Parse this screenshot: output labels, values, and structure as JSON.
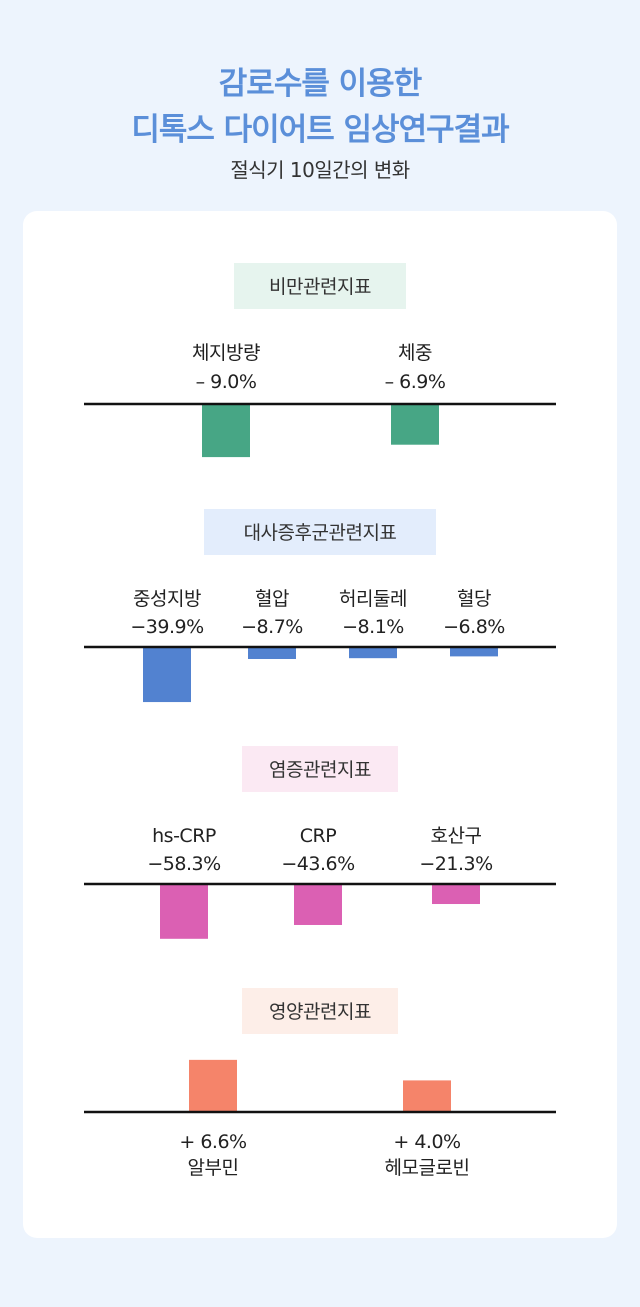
{
  "header": {
    "title_line1": "감로수를 이용한",
    "title_line2": "디톡스 다이어트 임상연구결과",
    "subtitle": "절식기 10일간의 변화"
  },
  "colors": {
    "background": "#edf4fd",
    "title": "#5b8fd9"
  },
  "chart_data": [
    {
      "type": "bar",
      "section_label": "비만관련지표",
      "label_bg": "#e6f4ee",
      "bar_color": "#47a685",
      "categories": [
        "체지방량",
        "체중"
      ],
      "value_labels": [
        "– 9.0%",
        "– 6.9%"
      ],
      "values": [
        -9.0,
        -6.9
      ]
    },
    {
      "type": "bar",
      "section_label": "대사증후군관련지표",
      "label_bg": "#e3edfc",
      "bar_color": "#5282d0",
      "categories": [
        "중성지방",
        "혈압",
        "허리둘레",
        "혈당"
      ],
      "value_labels": [
        "−39.9%",
        "−8.7%",
        "−8.1%",
        "−6.8%"
      ],
      "values": [
        -39.9,
        -8.7,
        -8.1,
        -6.8
      ]
    },
    {
      "type": "bar",
      "section_label": "염증관련지표",
      "label_bg": "#fbe9f3",
      "bar_color": "#db60b3",
      "categories": [
        "hs-CRP",
        "CRP",
        "호산구"
      ],
      "value_labels": [
        "−58.3%",
        "−43.6%",
        "−21.3%"
      ],
      "values": [
        -58.3,
        -43.6,
        -21.3
      ]
    },
    {
      "type": "bar",
      "section_label": "영양관련지표",
      "label_bg": "#fdeee8",
      "bar_color": "#f5846a",
      "categories": [
        "알부민",
        "헤모글로빈"
      ],
      "value_labels": [
        "+ 6.6%",
        "+ 4.0%"
      ],
      "values": [
        6.6,
        4.0
      ]
    }
  ]
}
